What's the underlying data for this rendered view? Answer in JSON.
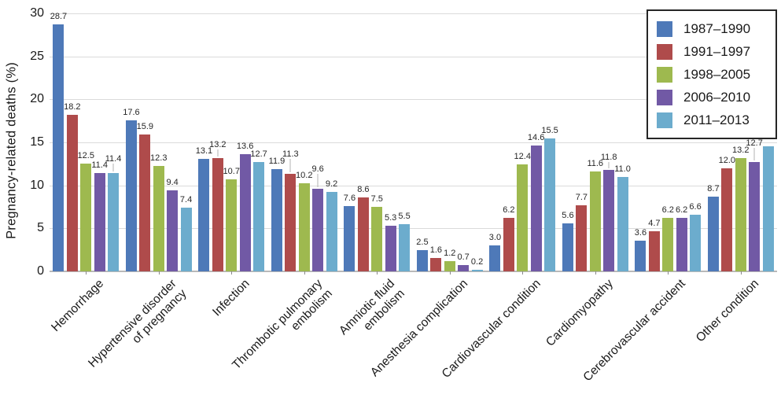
{
  "chart_data": {
    "type": "bar",
    "title": "",
    "ylabel": "Pregnancy-related deaths (%)",
    "xlabel": "",
    "ylim": [
      0,
      30
    ],
    "yticks": [
      0,
      5,
      10,
      15,
      20,
      25,
      30
    ],
    "grid": true,
    "value_labels": true,
    "value_label_format": "one-decimal",
    "legend_position": "top-right",
    "categories": [
      "Hemorrhage",
      "Hypertensive disorder\nof pregnancy",
      "Infection",
      "Thrombotic pulmonary\nembolism",
      "Amniotic fluid\nembolism",
      "Anesthesia complication",
      "Cardiovascular condition",
      "Cardiomyopathy",
      "Cerebrovascular accident",
      "Other condition"
    ],
    "series": [
      {
        "name": "1987–1990",
        "color": "#4E79B8",
        "values": [
          28.7,
          17.6,
          13.1,
          11.9,
          7.6,
          2.5,
          3.0,
          5.6,
          3.6,
          8.7
        ]
      },
      {
        "name": "1991–1997",
        "color": "#AF4B4B",
        "values": [
          18.2,
          15.9,
          13.2,
          11.3,
          8.6,
          1.6,
          6.2,
          7.7,
          4.7,
          12.0
        ]
      },
      {
        "name": "1998–2005",
        "color": "#9EB94F",
        "values": [
          12.5,
          12.3,
          10.7,
          10.2,
          7.5,
          1.2,
          12.4,
          11.6,
          6.2,
          13.2
        ]
      },
      {
        "name": "2006–2010",
        "color": "#7159A5",
        "values": [
          11.4,
          9.4,
          13.6,
          9.6,
          5.3,
          0.7,
          14.6,
          11.8,
          6.2,
          12.7
        ]
      },
      {
        "name": "2011–2013",
        "color": "#6CACCD",
        "values": [
          11.4,
          7.4,
          12.7,
          9.2,
          5.5,
          0.2,
          15.5,
          11.0,
          6.6,
          14.5
        ]
      }
    ],
    "colors": {
      "gridline": "#DBDBDB",
      "axis_line": "#B9B9B9",
      "text": "#1A1A1A",
      "legend_border": "#262626"
    }
  }
}
